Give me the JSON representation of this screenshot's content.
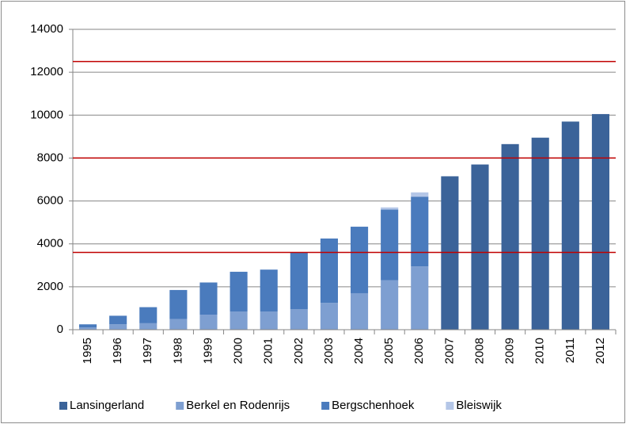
{
  "chart_data": {
    "type": "stacked-bar",
    "categories": [
      "1995",
      "1996",
      "1997",
      "1998",
      "1999",
      "2000",
      "2001",
      "2002",
      "2003",
      "2004",
      "2005",
      "2006",
      "2007",
      "2008",
      "2009",
      "2010",
      "2011",
      "2012"
    ],
    "series": [
      {
        "name": "Lansingerland",
        "color": "#3b6399",
        "values": [
          null,
          null,
          null,
          null,
          null,
          null,
          null,
          null,
          null,
          null,
          null,
          null,
          7150,
          7700,
          8650,
          8950,
          9700,
          10050
        ]
      },
      {
        "name": "Berkel en Rodenrijs",
        "color": "#7e9fd1",
        "values": [
          100,
          250,
          300,
          500,
          700,
          850,
          850,
          950,
          1250,
          1700,
          2300,
          2950,
          null,
          null,
          null,
          null,
          null,
          null
        ]
      },
      {
        "name": "Bergschenhoek",
        "color": "#4a7bbd",
        "values": [
          150,
          400,
          750,
          1350,
          1500,
          1850,
          1950,
          2650,
          3000,
          3100,
          3300,
          3250,
          null,
          null,
          null,
          null,
          null,
          null
        ]
      },
      {
        "name": "Bleiswijk",
        "color": "#b4c6e7",
        "values": [
          null,
          null,
          null,
          null,
          null,
          null,
          null,
          null,
          null,
          null,
          100,
          200,
          null,
          null,
          null,
          null,
          null,
          null
        ]
      }
    ],
    "ylim": [
      0,
      14000
    ],
    "yticks": [
      0,
      2000,
      4000,
      6000,
      8000,
      10000,
      12000,
      14000
    ],
    "grid": true,
    "reference_lines": [
      3600,
      8000,
      12500
    ],
    "reference_color": "#c00000",
    "legend": "bottom"
  }
}
